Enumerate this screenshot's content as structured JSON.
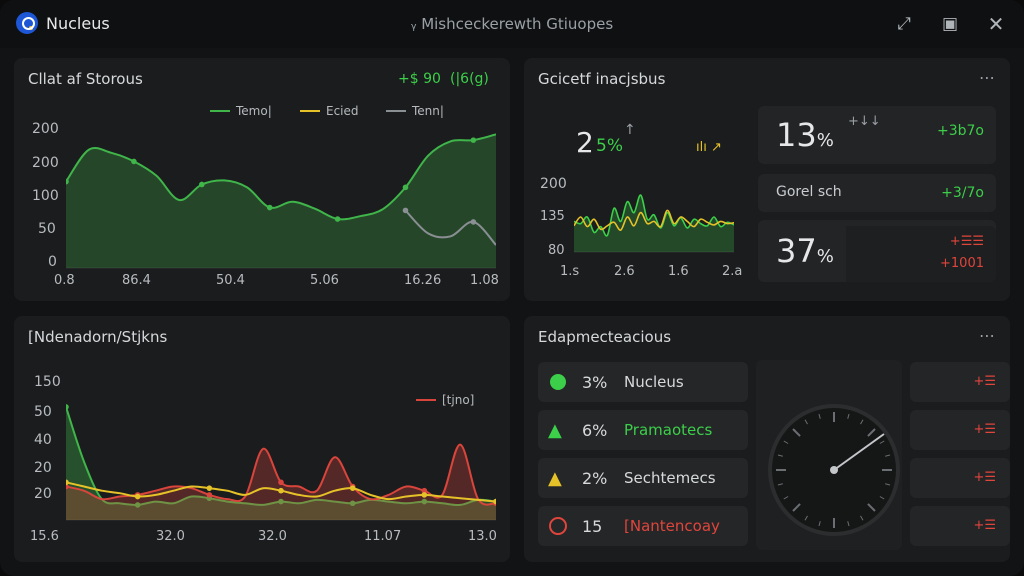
{
  "app": {
    "title": "Nucleus"
  },
  "window": {
    "title": "ᵧ Mishceckerewth Gtiuopes"
  },
  "panel1": {
    "title": "Cllat af Storous",
    "stat_a": "+$ 90",
    "stat_b": "(|6(g)",
    "legend": [
      {
        "label": "Temo|",
        "color": "#3fb54a"
      },
      {
        "label": "Ecied",
        "color": "#e6c229"
      },
      {
        "label": "Tenn|",
        "color": "#8a8f94"
      }
    ]
  },
  "panel2": {
    "title": "Gcicetf inacjsbus",
    "metric_left": {
      "value": "2",
      "pct": "5%",
      "arrow": "↑",
      "glyphs": "ılı ↗"
    },
    "card1": {
      "value": "13",
      "unit": "%",
      "sub": "+↓↓",
      "delta": "+3b7o"
    },
    "card2": {
      "label": "Gorel sch",
      "delta": "+3/7o"
    },
    "card3": {
      "value": "37",
      "unit": "%",
      "delta1": "+☰☰",
      "delta2": "+1001"
    },
    "colors": {
      "green": "#3ccf4a",
      "yellow": "#e6c229"
    }
  },
  "panel3": {
    "title": "[Ndenadorn/Stjkns",
    "legend": {
      "label": "[tjno]",
      "color": "#d9453c"
    }
  },
  "panel4": {
    "title": "Edapmecteacious",
    "rows": [
      {
        "pct": "3%",
        "name": "Nucleus",
        "name_color": "#d7dadc",
        "icon": "dot-icon",
        "action": "+☰"
      },
      {
        "pct": "6%",
        "name": "Pramaotecs",
        "name_color": "#3ccf4a",
        "icon": "warning-icon",
        "action": "+☰"
      },
      {
        "pct": "2%",
        "name": "Sechtemecs",
        "name_color": "#d7dadc",
        "icon": "warning-icon",
        "action": "+☰"
      },
      {
        "pct": "15",
        "name": "[Nantencoay",
        "name_color": "#e0453c",
        "icon": "ring-icon",
        "action": "+☰"
      }
    ]
  },
  "chart_data": [
    {
      "type": "area",
      "title": "Cllat af Storous",
      "y_tick_labels": [
        "200",
        "200",
        "100",
        "50",
        "0"
      ],
      "x_tick_labels": [
        "0.8",
        "86.4",
        "50.4",
        "5.06",
        "16.26",
        "1.08"
      ],
      "ylim": [
        0,
        250
      ],
      "series": [
        {
          "name": "Temo|",
          "color": "#3fb54a",
          "values": [
            150,
            205,
            200,
            185,
            160,
            118,
            145,
            152,
            140,
            105,
            115,
            103,
            85,
            90,
            102,
            140,
            195,
            220,
            222,
            232
          ]
        },
        {
          "name": "Tenn|",
          "color": "#8a8f94",
          "values": [
            null,
            null,
            null,
            null,
            null,
            null,
            null,
            null,
            null,
            null,
            null,
            null,
            null,
            null,
            null,
            100,
            60,
            55,
            80,
            40
          ]
        }
      ]
    },
    {
      "type": "line",
      "y_tick_labels": [
        "200",
        "135",
        "80"
      ],
      "x_tick_labels": [
        "1.s",
        "2.6",
        "1.6",
        "2.a"
      ],
      "ylim": [
        60,
        220
      ],
      "series": [
        {
          "name": "green",
          "color": "#3ccf4a",
          "values": [
            130,
            125,
            140,
            105,
            118,
            98,
            160,
            130,
            175,
            150,
            190,
            135,
            145,
            115,
            150,
            120,
            138,
            115,
            135,
            125,
            120,
            140,
            118,
            128,
            122
          ]
        },
        {
          "name": "yellow",
          "color": "#e6c229",
          "values": [
            120,
            140,
            118,
            135,
            112,
            120,
            128,
            110,
            140,
            120,
            150,
            125,
            130,
            118,
            155,
            125,
            140,
            130,
            118,
            135,
            128,
            122,
            130,
            125,
            127
          ]
        }
      ]
    },
    {
      "type": "line",
      "title": "[Ndenadorn/Stjkns",
      "y_tick_labels": [
        "150",
        "50",
        "40",
        "20",
        "20"
      ],
      "x_tick_labels": [
        "15.6",
        "32.0",
        "32.0",
        "11.07",
        "13.0"
      ],
      "ylim": [
        0,
        160
      ],
      "series": [
        {
          "name": "green",
          "color": "#3fb54a",
          "values": [
            135,
            70,
            25,
            20,
            18,
            22,
            20,
            28,
            26,
            22,
            20,
            18,
            22,
            20,
            24,
            22,
            20,
            24,
            22,
            20,
            22,
            20,
            18,
            24,
            22
          ]
        },
        {
          "name": "[tjno]",
          "color": "#d9453c",
          "values": [
            40,
            35,
            25,
            28,
            30,
            35,
            40,
            38,
            30,
            25,
            28,
            85,
            45,
            40,
            35,
            75,
            40,
            25,
            30,
            40,
            35,
            30,
            90,
            25,
            20
          ]
        },
        {
          "name": "yellow",
          "color": "#e6c229",
          "values": [
            45,
            40,
            35,
            32,
            28,
            30,
            35,
            40,
            38,
            35,
            30,
            38,
            35,
            30,
            28,
            35,
            38,
            30,
            25,
            28,
            30,
            28,
            26,
            24,
            22
          ]
        }
      ]
    }
  ]
}
